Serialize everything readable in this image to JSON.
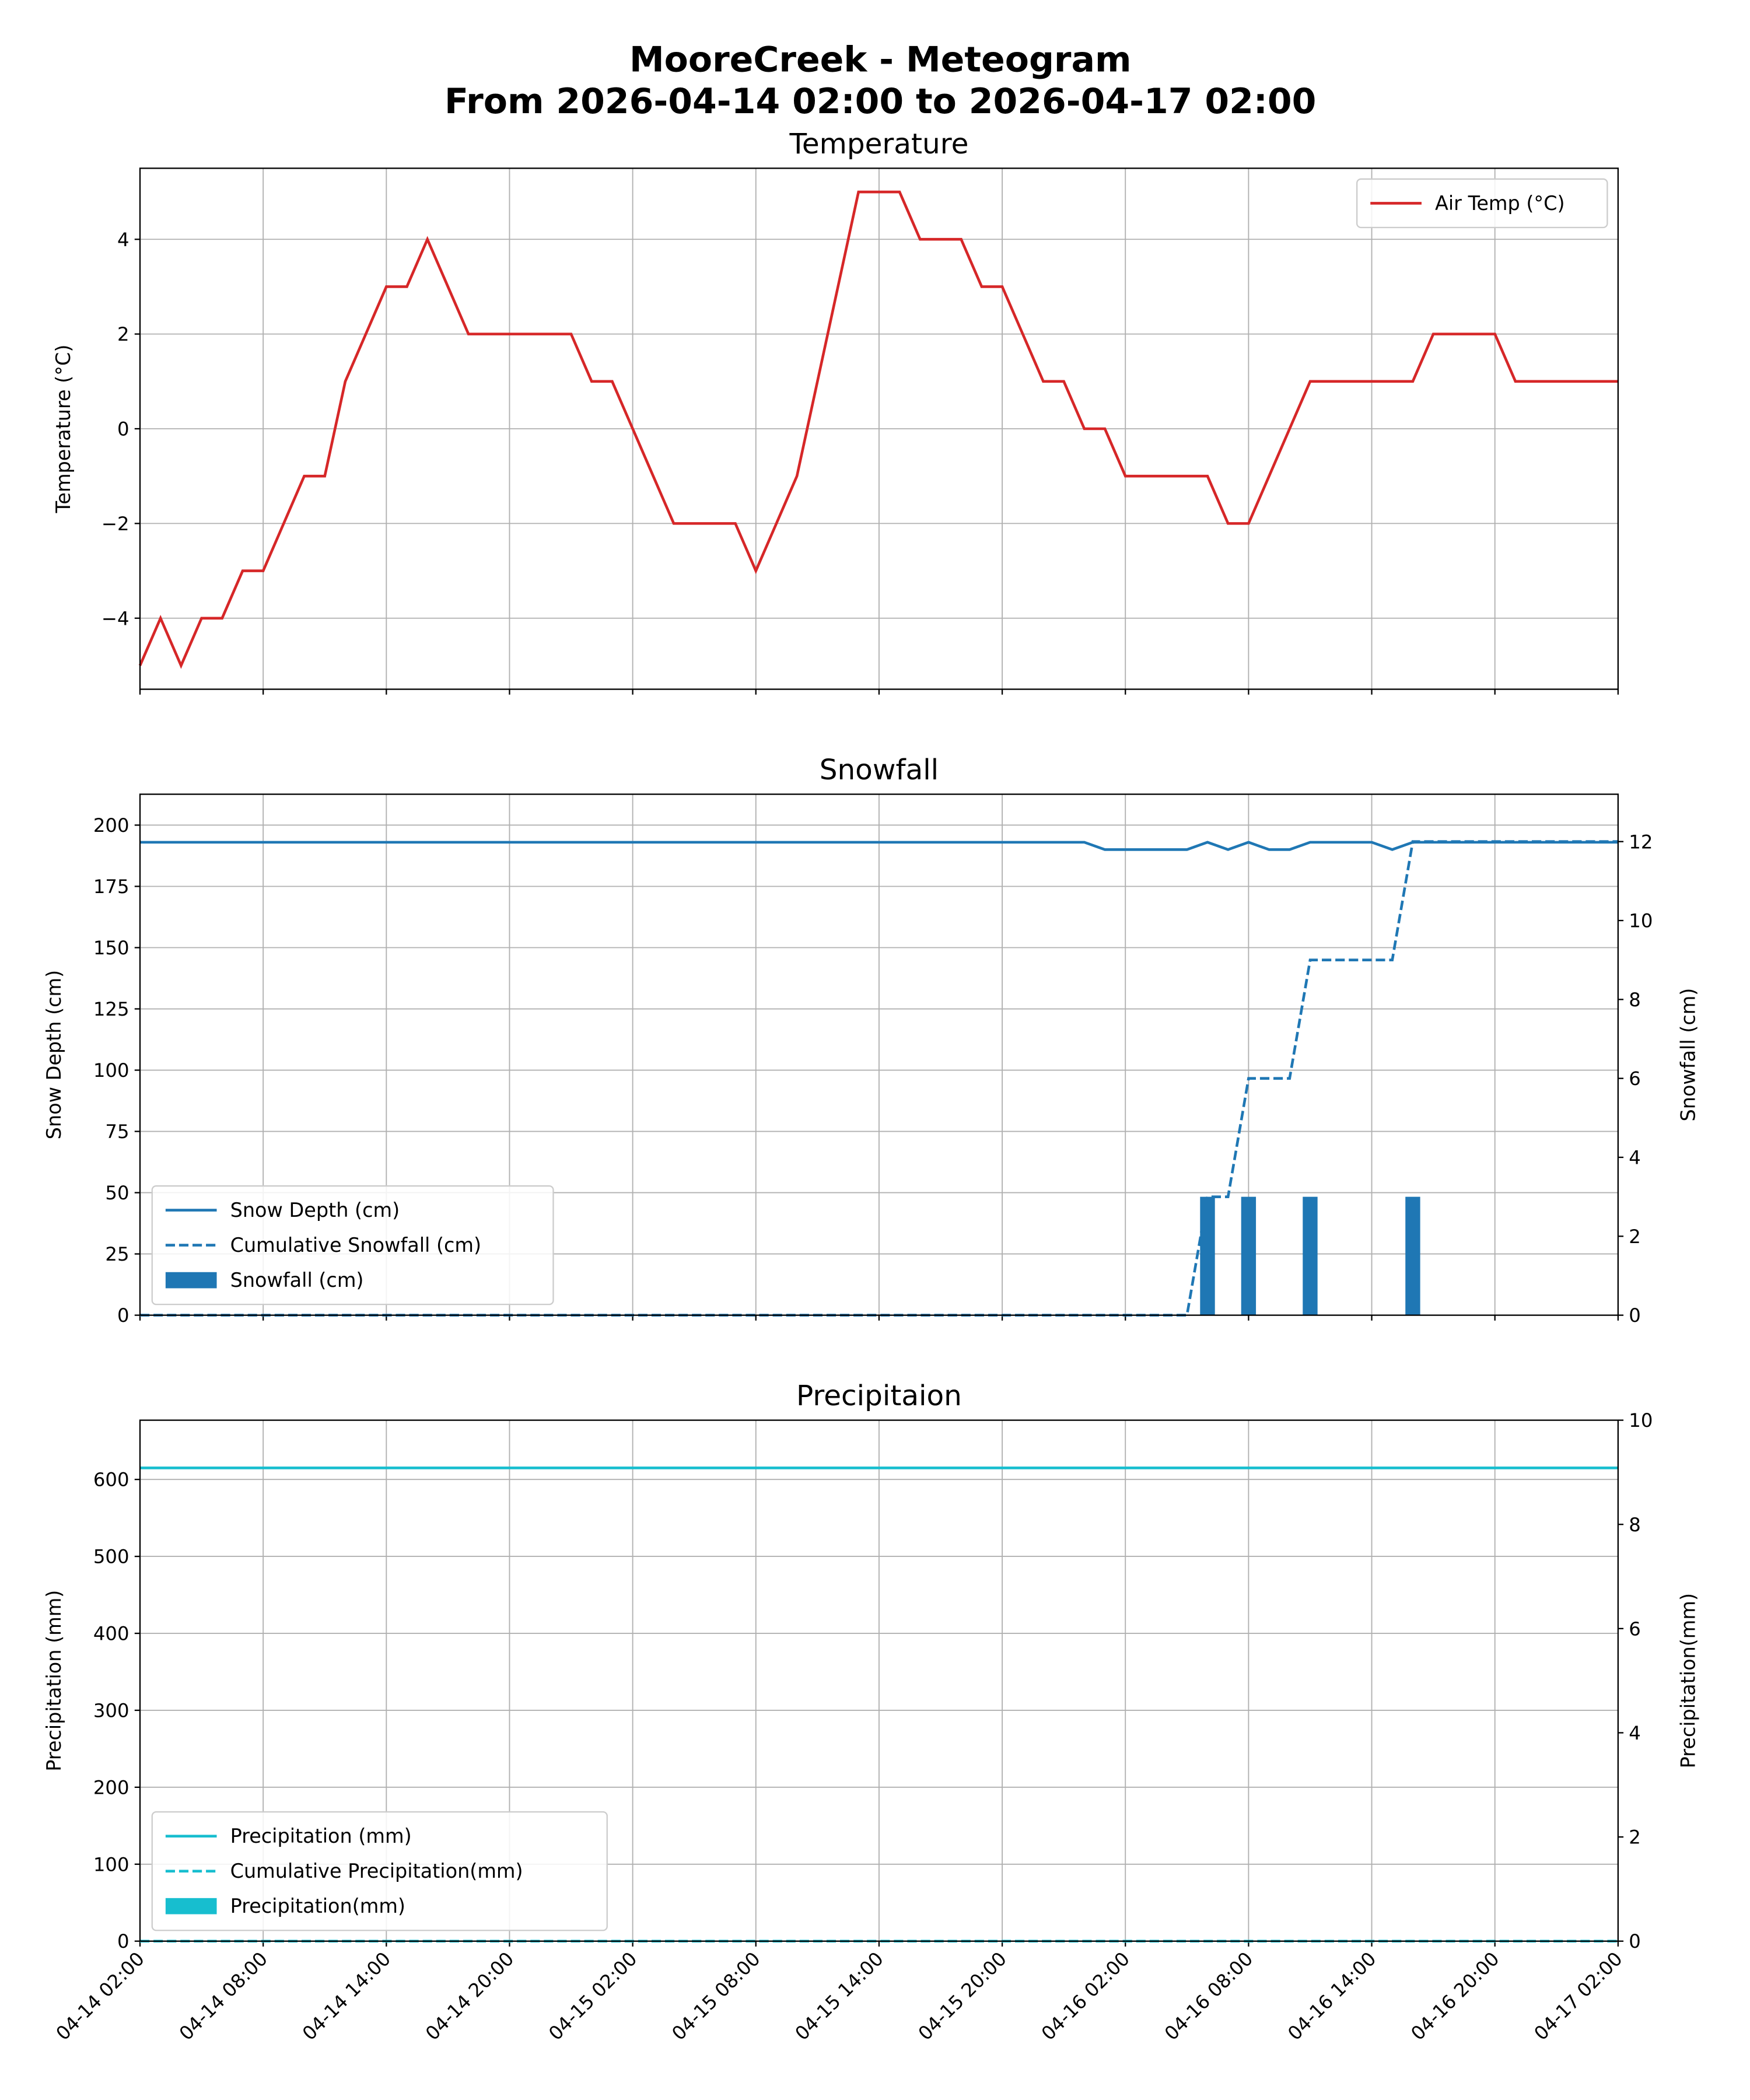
{
  "title_line1": "MooreCreek - Meteogram",
  "title_line2": "From 2026-04-14 02:00 to 2026-04-17 02:00",
  "time": {
    "start": "2026-04-14 02:00",
    "end": "2026-04-17 02:00",
    "step_hours": 1
  },
  "x_tick_labels": [
    "04-14 02:00",
    "04-14 08:00",
    "04-14 14:00",
    "04-14 20:00",
    "04-15 02:00",
    "04-15 08:00",
    "04-15 14:00",
    "04-15 20:00",
    "04-16 02:00",
    "04-16 08:00",
    "04-16 14:00",
    "04-16 20:00",
    "04-17 02:00"
  ],
  "chart_data": [
    {
      "type": "line",
      "title": "Temperature",
      "ylabel": "Temperature (°C)",
      "ylim": [
        -5.5,
        5.5
      ],
      "yticks": [
        -4,
        -2,
        0,
        2,
        4
      ],
      "grid": true,
      "legend": "top-right",
      "series": [
        {
          "name": "Air Temp (°C)",
          "color": "#d62728",
          "style": "solid",
          "values": [
            -5,
            -4,
            -5,
            -4,
            -4,
            -3,
            -3,
            -2,
            -1,
            -1,
            1,
            2,
            3,
            3,
            4,
            3,
            2,
            2,
            2,
            2,
            2,
            2,
            1,
            1,
            0,
            -1,
            -2,
            -2,
            -2,
            -2,
            -3,
            -2,
            -1,
            1,
            3,
            5,
            5,
            5,
            4,
            4,
            4,
            3,
            3,
            2,
            1,
            1,
            0,
            0,
            -1,
            -1,
            -1,
            -1,
            -1,
            -2,
            -2,
            -1,
            0,
            1,
            1,
            1,
            1,
            1,
            1,
            2,
            2,
            2,
            2,
            1,
            1,
            1,
            1,
            1,
            1
          ]
        }
      ]
    },
    {
      "type": "line",
      "title": "Snowfall",
      "ylabel": "Snow Depth (cm)",
      "ylabel_right": "Snowfall (cm)",
      "ylim": [
        0,
        212.6
      ],
      "ylim_right": [
        0,
        13.2
      ],
      "yticks": [
        0,
        25,
        50,
        75,
        100,
        125,
        150,
        175,
        200
      ],
      "yticks_right": [
        0,
        2,
        4,
        6,
        8,
        10,
        12
      ],
      "grid": true,
      "legend": "lower-left",
      "series": [
        {
          "name": "Snow Depth (cm)",
          "color": "#1f77b4",
          "style": "solid",
          "axis": "left",
          "values": [
            193,
            193,
            193,
            193,
            193,
            193,
            193,
            193,
            193,
            193,
            193,
            193,
            193,
            193,
            193,
            193,
            193,
            193,
            193,
            193,
            193,
            193,
            193,
            193,
            193,
            193,
            193,
            193,
            193,
            193,
            193,
            193,
            193,
            193,
            193,
            193,
            193,
            193,
            193,
            193,
            193,
            193,
            193,
            193,
            193,
            193,
            193,
            190,
            190,
            190,
            190,
            190,
            193,
            190,
            193,
            190,
            190,
            193,
            193,
            193,
            193,
            190,
            193,
            193,
            193,
            193,
            193,
            193,
            193,
            193,
            193,
            193,
            193
          ]
        },
        {
          "name": "Cumulative Snowfall (cm)",
          "color": "#1f77b4",
          "style": "dashed",
          "axis": "right",
          "values": [
            0,
            0,
            0,
            0,
            0,
            0,
            0,
            0,
            0,
            0,
            0,
            0,
            0,
            0,
            0,
            0,
            0,
            0,
            0,
            0,
            0,
            0,
            0,
            0,
            0,
            0,
            0,
            0,
            0,
            0,
            0,
            0,
            0,
            0,
            0,
            0,
            0,
            0,
            0,
            0,
            0,
            0,
            0,
            0,
            0,
            0,
            0,
            0,
            0,
            0,
            0,
            0,
            3,
            3,
            6,
            6,
            6,
            9,
            9,
            9,
            9,
            9,
            12,
            12,
            12,
            12,
            12,
            12,
            12,
            12,
            12,
            12,
            12
          ]
        },
        {
          "name": "Snowfall (cm)",
          "color": "#1f77b4",
          "style": "bar",
          "axis": "right",
          "values": [
            0,
            0,
            0,
            0,
            0,
            0,
            0,
            0,
            0,
            0,
            0,
            0,
            0,
            0,
            0,
            0,
            0,
            0,
            0,
            0,
            0,
            0,
            0,
            0,
            0,
            0,
            0,
            0,
            0,
            0,
            0,
            0,
            0,
            0,
            0,
            0,
            0,
            0,
            0,
            0,
            0,
            0,
            0,
            0,
            0,
            0,
            0,
            0,
            0,
            0,
            0,
            0,
            3,
            0,
            3,
            0,
            0,
            3,
            0,
            0,
            0,
            0,
            3,
            0,
            0,
            0,
            0,
            0,
            0,
            0,
            0,
            0,
            0
          ]
        }
      ]
    },
    {
      "type": "line",
      "title": "Precipitaion",
      "ylabel": "Precipitation (mm)",
      "ylabel_right": "Precipitation(mm)",
      "ylim": [
        0,
        677
      ],
      "ylim_right": [
        0,
        10
      ],
      "yticks": [
        0,
        100,
        200,
        300,
        400,
        500,
        600
      ],
      "yticks_right": [
        0,
        2,
        4,
        6,
        8,
        10
      ],
      "grid": true,
      "legend": "lower-left",
      "series": [
        {
          "name": "Precipitation (mm)",
          "color": "#17becf",
          "style": "solid",
          "axis": "left",
          "constant": 615
        },
        {
          "name": "Cumulative Precipitation(mm)",
          "color": "#17becf",
          "style": "dashed",
          "axis": "right",
          "constant": 0
        },
        {
          "name": "Precipitation(mm)",
          "color": "#17becf",
          "style": "bar",
          "axis": "right",
          "constant": 0
        }
      ]
    }
  ]
}
